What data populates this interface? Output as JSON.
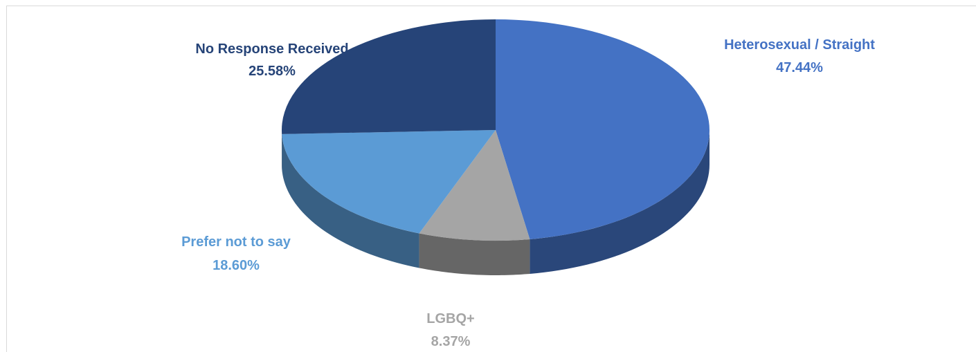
{
  "chart_data": {
    "type": "pie",
    "title": "",
    "categories": [
      "Heterosexual / Straight",
      "LGBQ+",
      "Prefer not to say",
      "No Response Received"
    ],
    "values": [
      47.44,
      8.37,
      18.6,
      25.58
    ],
    "value_labels": [
      "47.44%",
      "8.37%",
      "18.60%",
      "25.58%"
    ],
    "colors": [
      "#4472c4",
      "#a5a5a5",
      "#5b9bd5",
      "#264478"
    ],
    "label_colors": [
      "#4472c4",
      "#a5a5a5",
      "#5b9bd5",
      "#264478"
    ],
    "legend": "none"
  }
}
